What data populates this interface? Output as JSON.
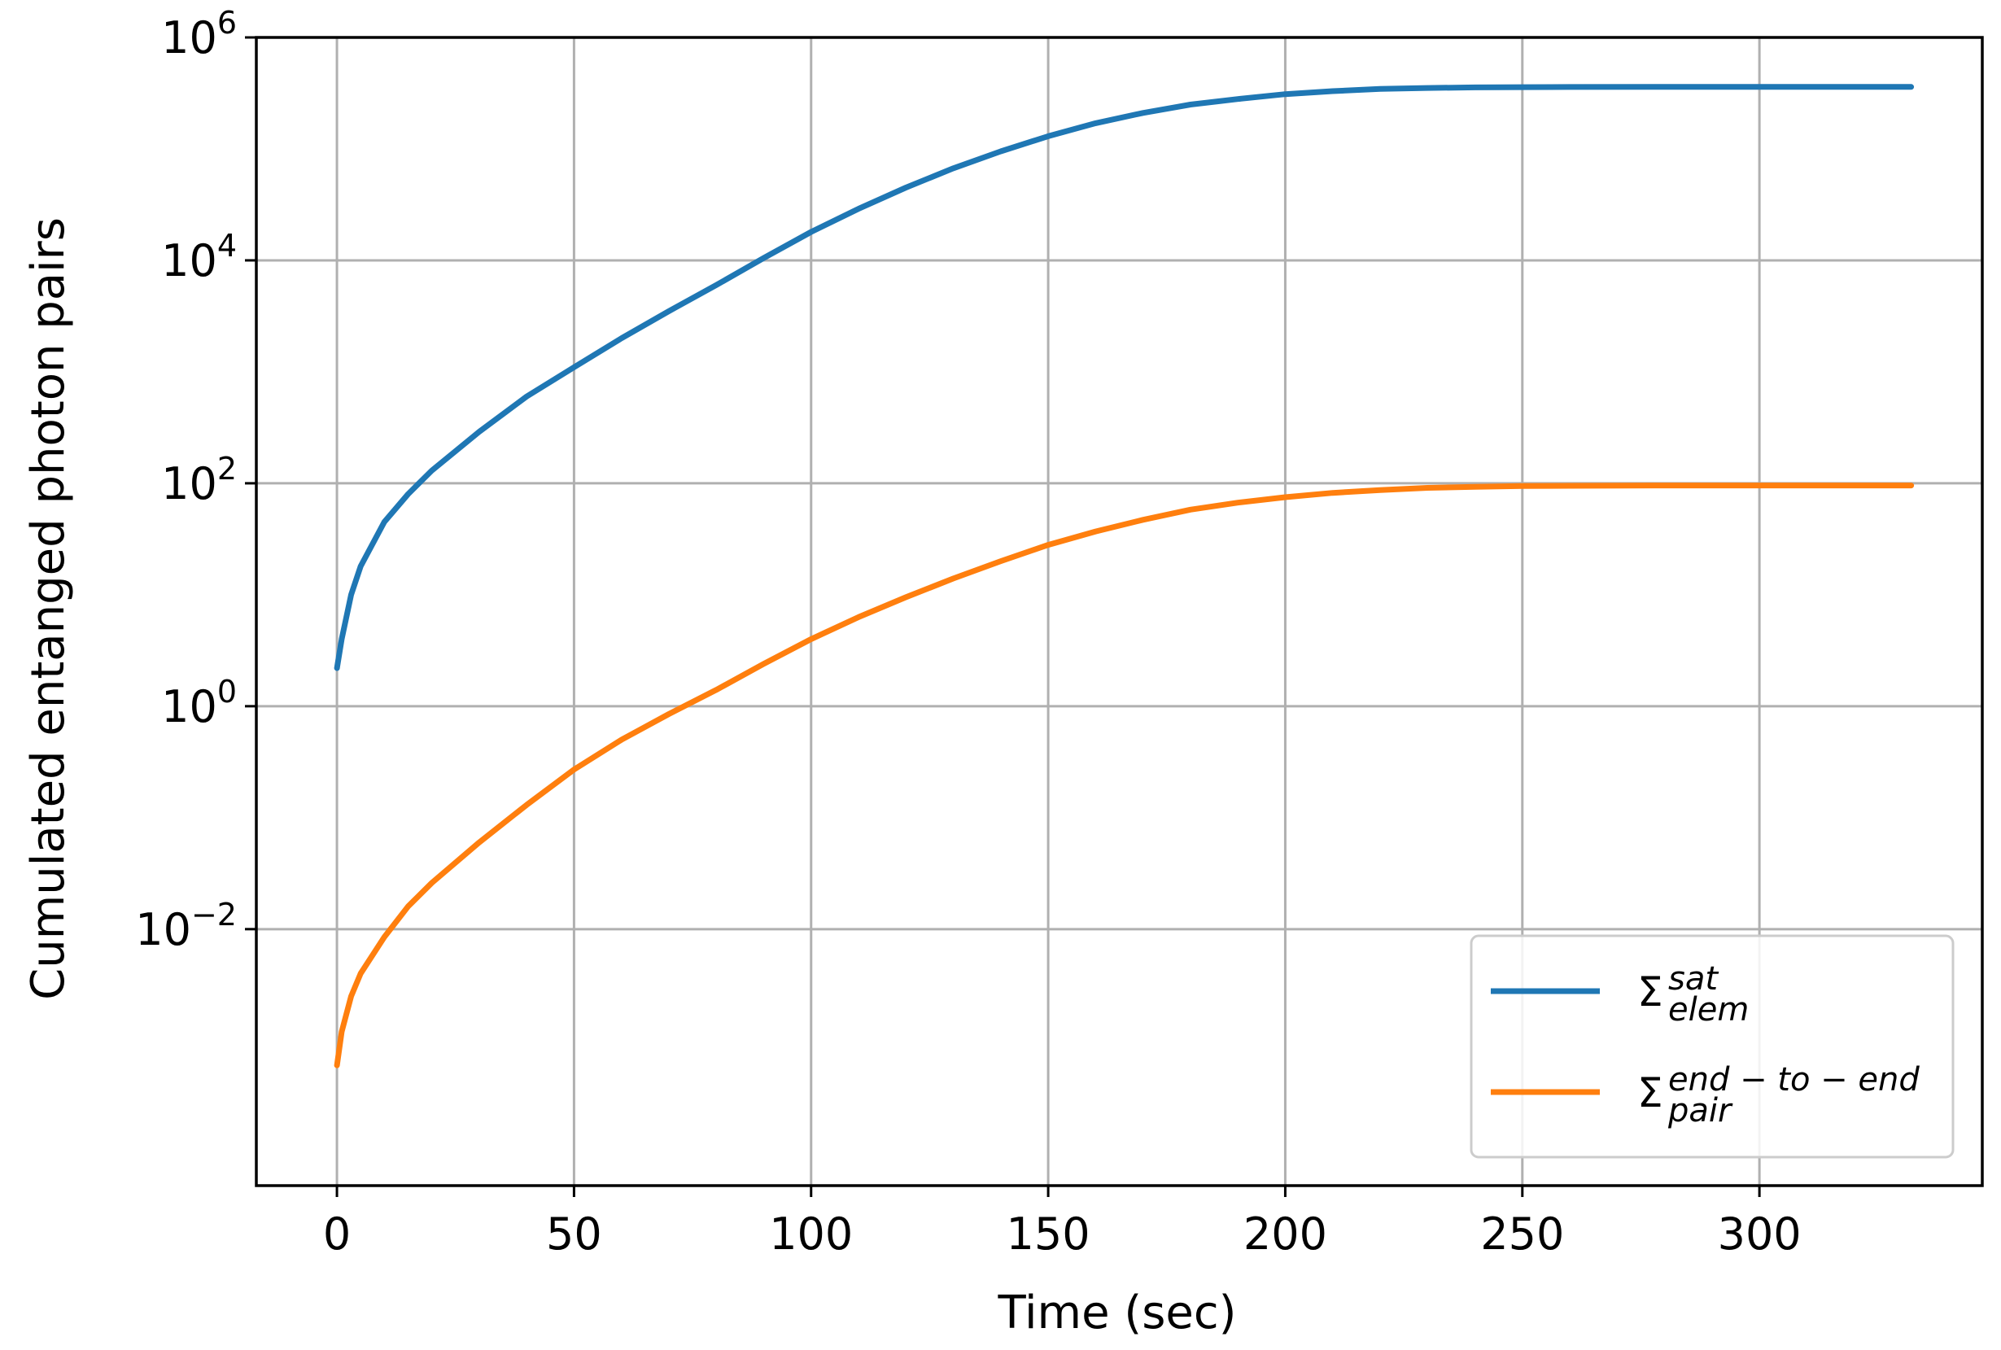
{
  "chart_data": {
    "type": "line",
    "xlabel": "Time (sec)",
    "ylabel": "Cumulated entanged photon pairs",
    "yscale": "log",
    "xlim": [
      -17,
      347
    ],
    "ylim": [
      5e-05,
      1000000
    ],
    "grid": true,
    "legend_position": "lower-right",
    "x_ticks": [
      0,
      50,
      100,
      150,
      200,
      250,
      300
    ],
    "x_tick_labels": [
      "0",
      "50",
      "100",
      "150",
      "200",
      "250",
      "300"
    ],
    "y_ticks": [
      0.01,
      1,
      100,
      10000,
      1000000
    ],
    "y_tick_labels": [
      {
        "base": "10",
        "exp": "−2"
      },
      {
        "base": "10",
        "exp": "0"
      },
      {
        "base": "10",
        "exp": "2"
      },
      {
        "base": "10",
        "exp": "4"
      },
      {
        "base": "10",
        "exp": "6"
      }
    ],
    "x": [
      0,
      1,
      3,
      5,
      10,
      15,
      20,
      30,
      40,
      50,
      60,
      70,
      80,
      90,
      100,
      110,
      120,
      130,
      140,
      150,
      160,
      170,
      180,
      190,
      200,
      210,
      220,
      230,
      240,
      250,
      260,
      280,
      300,
      320,
      332
    ],
    "series": [
      {
        "legend": {
          "base": "Σ",
          "sup": "sat",
          "sub": "elem"
        },
        "color": "#1f77b4",
        "values": [
          2.2,
          4,
          10,
          18,
          45,
          80,
          130,
          290,
          600,
          1100,
          2000,
          3500,
          6000,
          10500,
          18000,
          29000,
          45000,
          67000,
          95000,
          130000,
          170000,
          210000,
          250000,
          280000,
          310000,
          330000,
          345000,
          352000,
          356000,
          358000,
          359000,
          360000,
          360000,
          360000,
          360000
        ]
      },
      {
        "legend": {
          "base": "Σ",
          "sup": "end − to − end",
          "sub": "pair"
        },
        "color": "#ff7f0e",
        "values": [
          0.0006,
          0.0012,
          0.0025,
          0.004,
          0.0085,
          0.016,
          0.026,
          0.06,
          0.13,
          0.27,
          0.5,
          0.85,
          1.4,
          2.4,
          4,
          6.3,
          9.5,
          14,
          20,
          28,
          37,
          47,
          58,
          67,
          75,
          82,
          87,
          91,
          93,
          94.5,
          95,
          95.5,
          95.5,
          95.5,
          95.5
        ]
      }
    ]
  }
}
